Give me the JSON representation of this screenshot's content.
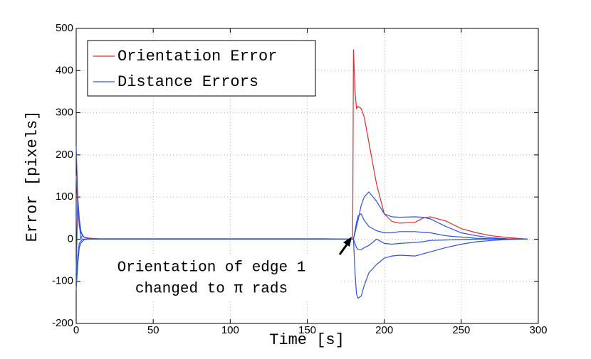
{
  "chart_data": {
    "type": "line",
    "xlabel": "Time [s]",
    "ylabel": "Error [pixels]",
    "xlim": [
      0,
      300
    ],
    "ylim": [
      -200,
      500
    ],
    "xticks": [
      0,
      50,
      100,
      150,
      200,
      250,
      300
    ],
    "yticks": [
      -200,
      -100,
      0,
      100,
      200,
      300,
      400,
      500
    ],
    "grid": true,
    "legend_position": "upper left",
    "annotation": {
      "lines": [
        "Orientation of edge 1",
        "changed to π rads"
      ]
    },
    "x": [
      0,
      1,
      2,
      3,
      4,
      5,
      7,
      10,
      15,
      20,
      40,
      60,
      80,
      100,
      120,
      140,
      160,
      179.5,
      180,
      181,
      182,
      183,
      185,
      187,
      190,
      195,
      200,
      205,
      210,
      220,
      225,
      230,
      240,
      250,
      260,
      270,
      280,
      290,
      293
    ],
    "series": [
      {
        "name": "Orientation Error",
        "color": "#e8292b",
        "values": [
          150,
          80,
          30,
          15,
          10,
          5,
          3,
          2,
          1,
          1,
          1,
          1,
          1,
          1,
          1,
          1,
          1,
          0,
          450,
          350,
          310,
          315,
          310,
          290,
          230,
          130,
          60,
          42,
          38,
          40,
          50,
          53,
          43,
          25,
          15,
          8,
          4,
          1,
          0
        ]
      },
      {
        "name": "Distance Errors",
        "color": "#2a52e0",
        "values": [
          220,
          100,
          50,
          20,
          10,
          5,
          2,
          1,
          0,
          0,
          0,
          0,
          0,
          0,
          0,
          0,
          0,
          0,
          0,
          15,
          30,
          45,
          80,
          100,
          112,
          90,
          60,
          53,
          52,
          53,
          52,
          48,
          30,
          15,
          8,
          3,
          1,
          0,
          0
        ]
      },
      {
        "color": "#2a52e0",
        "values": [
          -120,
          -60,
          -20,
          -10,
          -5,
          -2,
          0,
          0,
          0,
          0,
          0,
          0,
          0,
          0,
          0,
          0,
          0,
          0,
          0,
          -80,
          -130,
          -140,
          -135,
          -110,
          -80,
          -60,
          -45,
          -40,
          -38,
          -40,
          -35,
          -30,
          -20,
          -12,
          -6,
          -3,
          -1,
          0,
          0
        ]
      },
      {
        "color": "#2a52e0",
        "values": [
          -80,
          100,
          40,
          0,
          10,
          5,
          3,
          0,
          0,
          0,
          0,
          0,
          0,
          0,
          0,
          0,
          0,
          0,
          0,
          20,
          40,
          55,
          60,
          45,
          30,
          20,
          15,
          15,
          18,
          18,
          16,
          15,
          8,
          5,
          2,
          1,
          0,
          0,
          0
        ]
      },
      {
        "color": "#2a52e0",
        "values": [
          -100,
          -40,
          -10,
          -5,
          0,
          0,
          0,
          0,
          0,
          0,
          0,
          0,
          0,
          0,
          0,
          0,
          0,
          0,
          0,
          -10,
          -20,
          -25,
          -25,
          -20,
          -15,
          0,
          -10,
          -12,
          -10,
          -8,
          -6,
          -3,
          -2,
          -1,
          0,
          0,
          0,
          0,
          0
        ]
      }
    ]
  }
}
